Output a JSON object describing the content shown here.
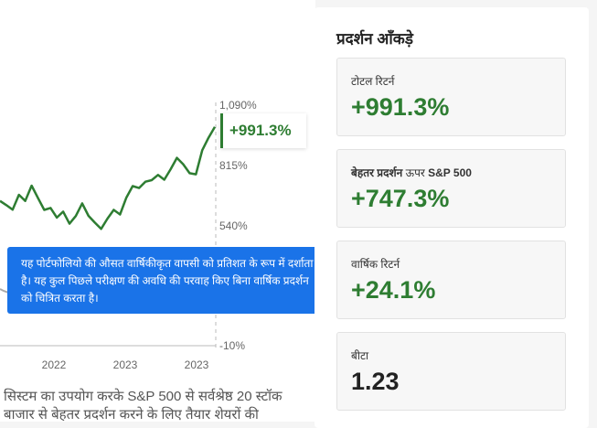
{
  "chart": {
    "y_ticks": [
      "1,090%",
      "815%",
      "540%",
      "-10%"
    ],
    "x_ticks": [
      "2022",
      "2023",
      "2023"
    ],
    "end_value_label": "+991.3%",
    "line_color": "#2e7d32"
  },
  "chart_data": {
    "type": "line",
    "y_ticks": [
      "1,090%",
      "815%",
      "540%",
      "-10%"
    ],
    "x_ticks": [
      "2022",
      "2023",
      "2023"
    ],
    "ylim": [
      -10,
      1090
    ],
    "series": [
      {
        "values": [
          652,
          633,
          612,
          680,
          652,
          722,
          666,
          611,
          620,
          576,
          603,
          548,
          583,
          641,
          584,
          553,
          524,
          571,
          611,
          590,
          667,
          720,
          711,
          740,
          747,
          771,
          749,
          797,
          849,
          820,
          779,
          774,
          884,
          941,
          991
        ]
      }
    ]
  },
  "tooltip": {
    "text": "यह पोर्टफोलियो की औसत वार्षिकीकृत वापसी को प्रतिशत के रूप में दर्शाता है। यह कुल पिछले परीक्षण की अवधि की परवाह किए बिना वार्षिक प्रदर्शन को चित्रित करता है।"
  },
  "description": {
    "line1": "सिस्टम का उपयोग करके S&P 500 से सर्वश्रेष्ठ 20 स्टॉक",
    "line2": "बाजार से बेहतर प्रदर्शन करने के लिए तैयार शेयरों की"
  },
  "stats": {
    "title": "प्रदर्शन आँकड़े",
    "cards": [
      {
        "label": "टोटल रिटर्न",
        "value": "+991.3%",
        "color": "#2e7d32"
      },
      {
        "label_bold": "बेहतर प्रदर्शन",
        "label_rest": " ऊपर ",
        "label_bold2": "S&P 500",
        "value": "+747.3%",
        "color": "#2e7d32"
      },
      {
        "label": "वार्षिक रिटर्न",
        "value": "+24.1%",
        "color": "#2e7d32"
      },
      {
        "label": "बीटा",
        "value": "1.23",
        "color": "#222222"
      }
    ]
  }
}
